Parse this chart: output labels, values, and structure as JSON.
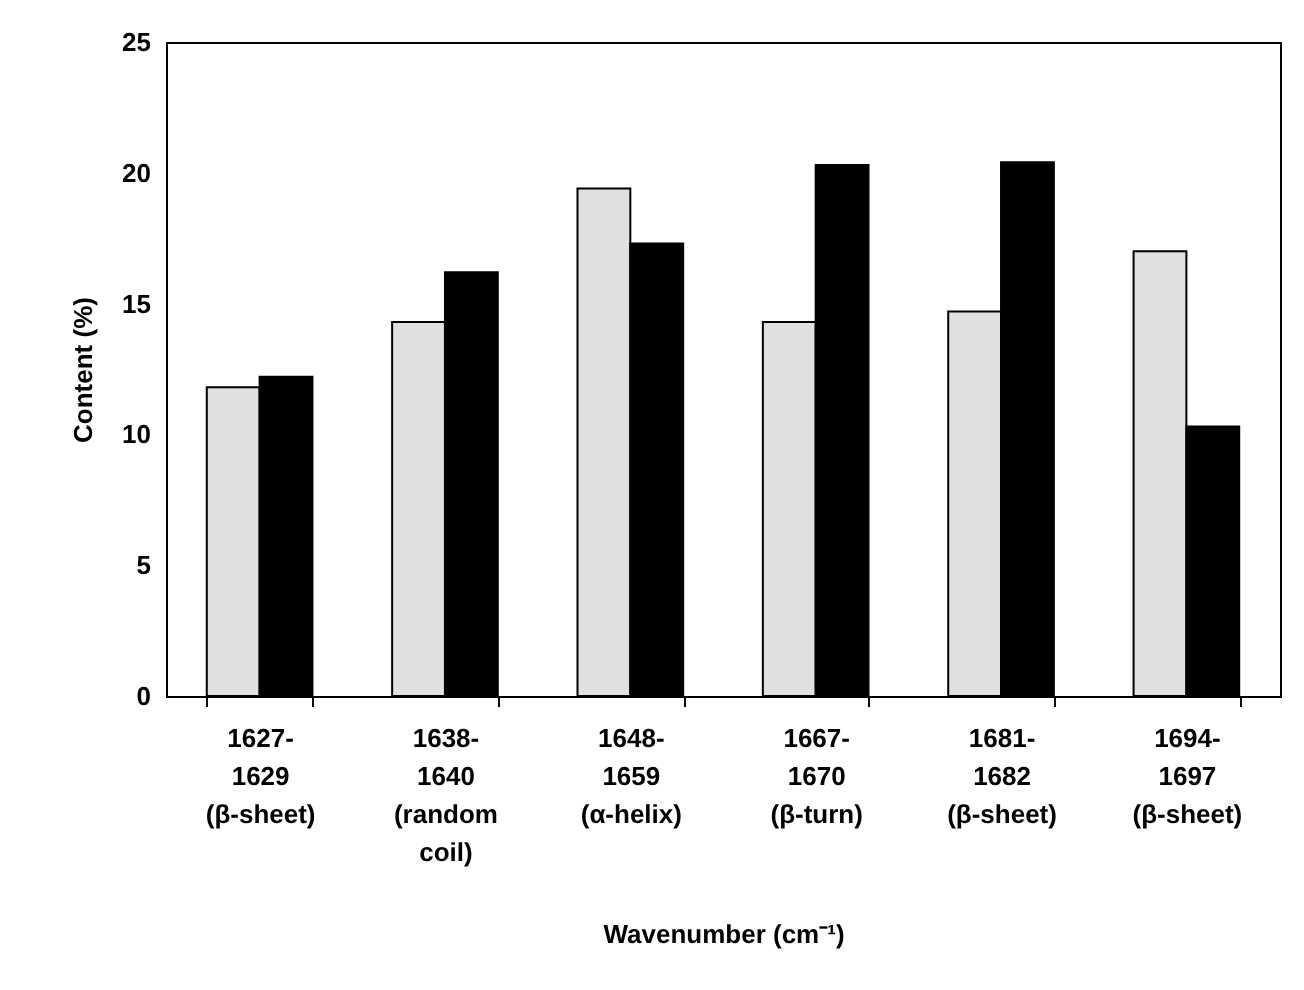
{
  "chart_data": {
    "type": "bar",
    "xlabel": "Wavenumber (cm⁻¹)",
    "ylabel": "Content (%)",
    "categories": [
      "1627-\n1629\n(β-sheet)",
      "1638-\n1640\n(random\ncoil)",
      "1648-\n1659\n(α-helix)",
      "1667-\n1670\n(β-turn)",
      "1681-\n1682\n(β-sheet)",
      "1694-\n1697\n(β-sheet)"
    ],
    "series": [
      {
        "color": "#e0e0e0",
        "values": [
          11.8,
          14.3,
          19.4,
          14.3,
          14.7,
          17.0
        ]
      },
      {
        "color": "#000000",
        "values": [
          12.2,
          16.2,
          17.3,
          20.3,
          20.4,
          10.3
        ]
      }
    ],
    "ylim": [
      0,
      25
    ],
    "yticks": [
      0,
      5,
      10,
      15,
      20,
      25
    ],
    "grid": false,
    "legend": false
  }
}
